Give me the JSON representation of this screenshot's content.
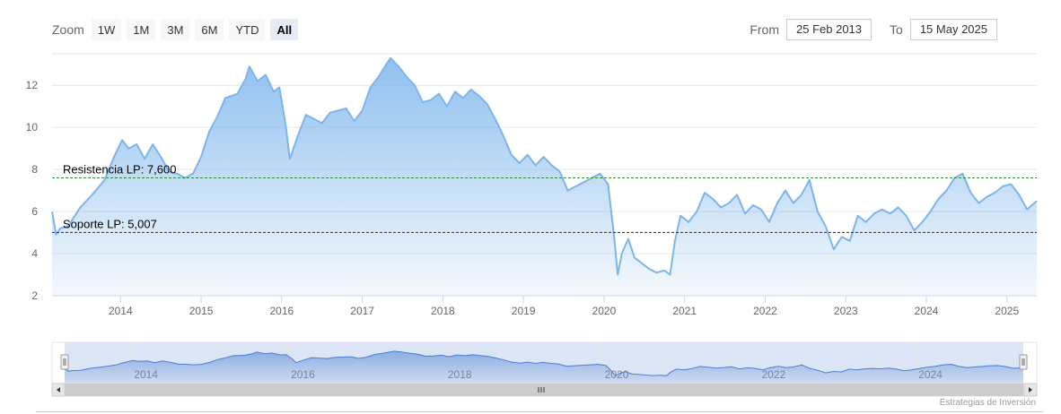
{
  "rangeSelector": {
    "zoom_label": "Zoom",
    "buttons": [
      "1W",
      "1M",
      "3M",
      "6M",
      "YTD",
      "All"
    ],
    "selected": "All",
    "from_label": "From",
    "from_value": "25 Feb 2013",
    "to_label": "To",
    "to_value": "15 May 2025"
  },
  "credit": "Estrategias de Inversión",
  "colors": {
    "line": "#7cb5ec",
    "resistance": "#2e8b2e",
    "support": "#8b0000",
    "navigator": "#4a7fd1"
  },
  "chart_data": {
    "type": "area",
    "xlim": [
      2013.15,
      2025.37
    ],
    "ylim": [
      2,
      13.5
    ],
    "yticks": [
      2,
      4,
      6,
      8,
      10,
      12
    ],
    "xticks": [
      2014,
      2015,
      2016,
      2017,
      2018,
      2019,
      2020,
      2021,
      2022,
      2023,
      2024,
      2025
    ],
    "nav_ticks": [
      2014,
      2016,
      2018,
      2020,
      2022,
      2024
    ],
    "series": [
      {
        "x": [
          2013.15,
          2013.2,
          2013.25,
          2013.35,
          2013.5,
          2013.65,
          2013.8,
          2013.92,
          2014.02,
          2014.1,
          2014.2,
          2014.3,
          2014.4,
          2014.5,
          2014.6,
          2014.7,
          2014.8,
          2014.9,
          2015.0,
          2015.1,
          2015.2,
          2015.3,
          2015.38,
          2015.45,
          2015.55,
          2015.6,
          2015.7,
          2015.8,
          2015.9,
          2015.97,
          2016.05,
          2016.1,
          2016.2,
          2016.3,
          2016.4,
          2016.5,
          2016.6,
          2016.7,
          2016.8,
          2016.9,
          2017.0,
          2017.1,
          2017.2,
          2017.3,
          2017.35,
          2017.45,
          2017.55,
          2017.65,
          2017.75,
          2017.85,
          2017.95,
          2018.05,
          2018.15,
          2018.25,
          2018.35,
          2018.45,
          2018.55,
          2018.65,
          2018.75,
          2018.85,
          2018.95,
          2019.05,
          2019.15,
          2019.25,
          2019.35,
          2019.45,
          2019.55,
          2019.65,
          2019.75,
          2019.85,
          2019.95,
          2020.05,
          2020.12,
          2020.17,
          2020.22,
          2020.3,
          2020.38,
          2020.45,
          2020.55,
          2020.65,
          2020.75,
          2020.82,
          2020.88,
          2020.95,
          2021.05,
          2021.15,
          2021.25,
          2021.35,
          2021.45,
          2021.55,
          2021.65,
          2021.75,
          2021.85,
          2021.95,
          2022.05,
          2022.15,
          2022.25,
          2022.35,
          2022.45,
          2022.55,
          2022.65,
          2022.75,
          2022.85,
          2022.95,
          2023.05,
          2023.15,
          2023.25,
          2023.35,
          2023.45,
          2023.55,
          2023.65,
          2023.75,
          2023.85,
          2023.95,
          2024.05,
          2024.15,
          2024.25,
          2024.35,
          2024.45,
          2024.55,
          2024.65,
          2024.75,
          2024.85,
          2024.95,
          2025.05,
          2025.15,
          2025.25,
          2025.37
        ],
        "y": [
          6.0,
          4.9,
          5.2,
          5.3,
          6.2,
          6.8,
          7.5,
          8.6,
          9.4,
          9.0,
          9.2,
          8.5,
          9.2,
          8.6,
          7.9,
          7.8,
          7.6,
          7.8,
          8.6,
          9.8,
          10.5,
          11.4,
          11.5,
          11.6,
          12.3,
          12.9,
          12.2,
          12.5,
          11.7,
          11.9,
          10.1,
          8.5,
          9.6,
          10.6,
          10.4,
          10.2,
          10.7,
          10.8,
          10.9,
          10.3,
          10.8,
          11.9,
          12.4,
          13.0,
          13.3,
          12.9,
          12.4,
          12.0,
          11.2,
          11.3,
          11.6,
          11.0,
          11.7,
          11.4,
          11.8,
          11.5,
          11.1,
          10.4,
          9.6,
          8.7,
          8.3,
          8.7,
          8.2,
          8.6,
          8.2,
          7.9,
          7.0,
          7.2,
          7.4,
          7.6,
          7.8,
          7.3,
          5.0,
          3.0,
          4.0,
          4.7,
          3.8,
          3.6,
          3.3,
          3.1,
          3.2,
          3.0,
          4.6,
          5.8,
          5.5,
          6.0,
          6.9,
          6.6,
          6.2,
          6.4,
          6.8,
          5.9,
          6.3,
          6.1,
          5.5,
          6.4,
          7.0,
          6.4,
          6.8,
          7.5,
          6.0,
          5.3,
          4.2,
          4.8,
          4.6,
          5.8,
          5.5,
          5.9,
          6.1,
          5.9,
          6.2,
          5.8,
          5.1,
          5.5,
          6.0,
          6.6,
          7.0,
          7.6,
          7.8,
          6.9,
          6.4,
          6.7,
          6.9,
          7.2,
          7.3,
          6.8,
          6.1,
          6.5
        ],
        "color": "#7cb5ec"
      }
    ],
    "plotLines": [
      {
        "label": "Resistencia LP: 7,600",
        "value": 7.6,
        "color": "#2e8b2e"
      },
      {
        "label": "Soporte LP: 5,007",
        "value": 5.007,
        "color": "#8b0000"
      }
    ],
    "grid": true,
    "legend": "none"
  }
}
